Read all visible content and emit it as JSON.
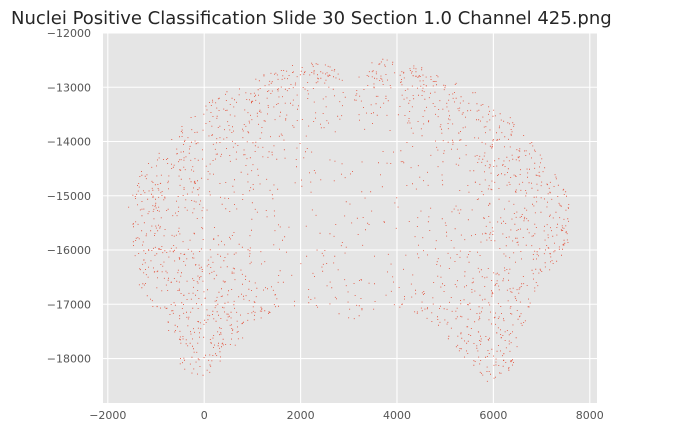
{
  "chart_data": {
    "type": "scatter",
    "title": "Nuclei Positive Classification Slide  30 Section 1.0 Channel 425.png",
    "xlabel": "",
    "ylabel": "",
    "xlim": [
      -2100,
      8150
    ],
    "ylim": [
      -18820,
      -12000
    ],
    "xticks": [
      -2000,
      0,
      2000,
      4000,
      6000,
      8000
    ],
    "xtick_labels": [
      "−2000",
      "0",
      "2000",
      "4000",
      "6000",
      "8000"
    ],
    "yticks": [
      -12000,
      -13000,
      -14000,
      -15000,
      -16000,
      -17000,
      -18000
    ],
    "ytick_labels": [
      "−12000",
      "−13000",
      "−14000",
      "−15000",
      "−16000",
      "−17000",
      "−18000"
    ],
    "grid": true,
    "legend": "none",
    "point_color": "#e24a33",
    "background_color": "#e5e5e5",
    "series": [
      {
        "point_count_estimate": 50000,
        "extent": {
          "x_min": -1650,
          "x_max": 7700,
          "y_min": -18500,
          "y_max": -12350
        },
        "centroid": [
          3000,
          -15300
        ],
        "outline_top": [
          [
            -1600,
            -15200
          ],
          [
            -1300,
            -14500
          ],
          [
            -700,
            -13900
          ],
          [
            0,
            -13300
          ],
          [
            900,
            -12850
          ],
          [
            1800,
            -12550
          ],
          [
            2400,
            -12500
          ],
          [
            2700,
            -12650
          ],
          [
            2950,
            -12950
          ],
          [
            3050,
            -12950
          ],
          [
            3300,
            -12600
          ],
          [
            3600,
            -12420
          ],
          [
            4300,
            -12550
          ],
          [
            5300,
            -12900
          ],
          [
            6300,
            -13500
          ],
          [
            7000,
            -14200
          ],
          [
            7500,
            -14900
          ],
          [
            7650,
            -15500
          ]
        ],
        "outline_bottom": [
          [
            7650,
            -15500
          ],
          [
            7500,
            -16000
          ],
          [
            6900,
            -16700
          ],
          [
            6600,
            -17500
          ],
          [
            6400,
            -18200
          ],
          [
            5900,
            -18450
          ],
          [
            5500,
            -18100
          ],
          [
            4700,
            -17300
          ],
          [
            3900,
            -17000
          ],
          [
            3000,
            -17300
          ],
          [
            2100,
            -17000
          ],
          [
            1300,
            -17200
          ],
          [
            600,
            -17800
          ],
          [
            0,
            -18350
          ],
          [
            -450,
            -18250
          ],
          [
            -800,
            -17400
          ],
          [
            -1400,
            -16600
          ],
          [
            -1600,
            -15200
          ]
        ]
      }
    ]
  }
}
